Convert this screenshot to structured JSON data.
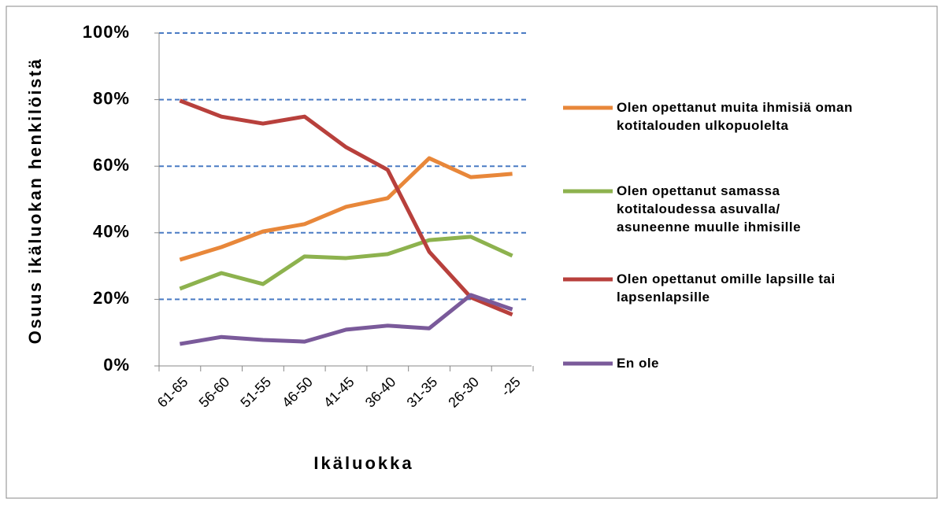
{
  "chart_data": {
    "type": "line",
    "x_label": "Ikäluokka",
    "y_label": "Osuus ikäluokan henkilöistä",
    "categories": [
      "61-65",
      "56-60",
      "51-55",
      "46-50",
      "41-45",
      "36-40",
      "31-35",
      "26-30",
      "-25"
    ],
    "series": [
      {
        "name": "Olen opettanut muita ihmisiä oman kotitalouden ulkopuolelta",
        "color": "#e8873a",
        "values": [
          31.9,
          35.7,
          40.4,
          42.6,
          47.8,
          50.4,
          62.4,
          56.7,
          57.7
        ]
      },
      {
        "name": "Olen opettanut samassa kotitaloudessa asuvalla/ asuneenne muulle ihmisille",
        "color": "#8db24e",
        "values": [
          23.2,
          27.9,
          24.6,
          32.9,
          32.4,
          33.6,
          37.8,
          38.8,
          33.1
        ]
      },
      {
        "name": "Olen opettanut omille lapsille tai lapsenlapsille",
        "color": "#b8403c",
        "values": [
          79.7,
          74.9,
          72.8,
          74.9,
          65.7,
          58.9,
          34.3,
          20.6,
          15.4
        ]
      },
      {
        "name": "En ole",
        "color": "#7a5a9a",
        "values": [
          6.6,
          8.7,
          7.8,
          7.3,
          10.9,
          12.1,
          11.3,
          21.3,
          17.0
        ]
      }
    ],
    "ylim": [
      0,
      100
    ],
    "yticks": [
      {
        "value": 0,
        "label": "0%"
      },
      {
        "value": 20,
        "label": "20%"
      },
      {
        "value": 40,
        "label": "40%"
      },
      {
        "value": 60,
        "label": "60%"
      },
      {
        "value": 80,
        "label": "80%"
      },
      {
        "value": 100,
        "label": "100%"
      }
    ],
    "grid": true,
    "legend": "right"
  }
}
